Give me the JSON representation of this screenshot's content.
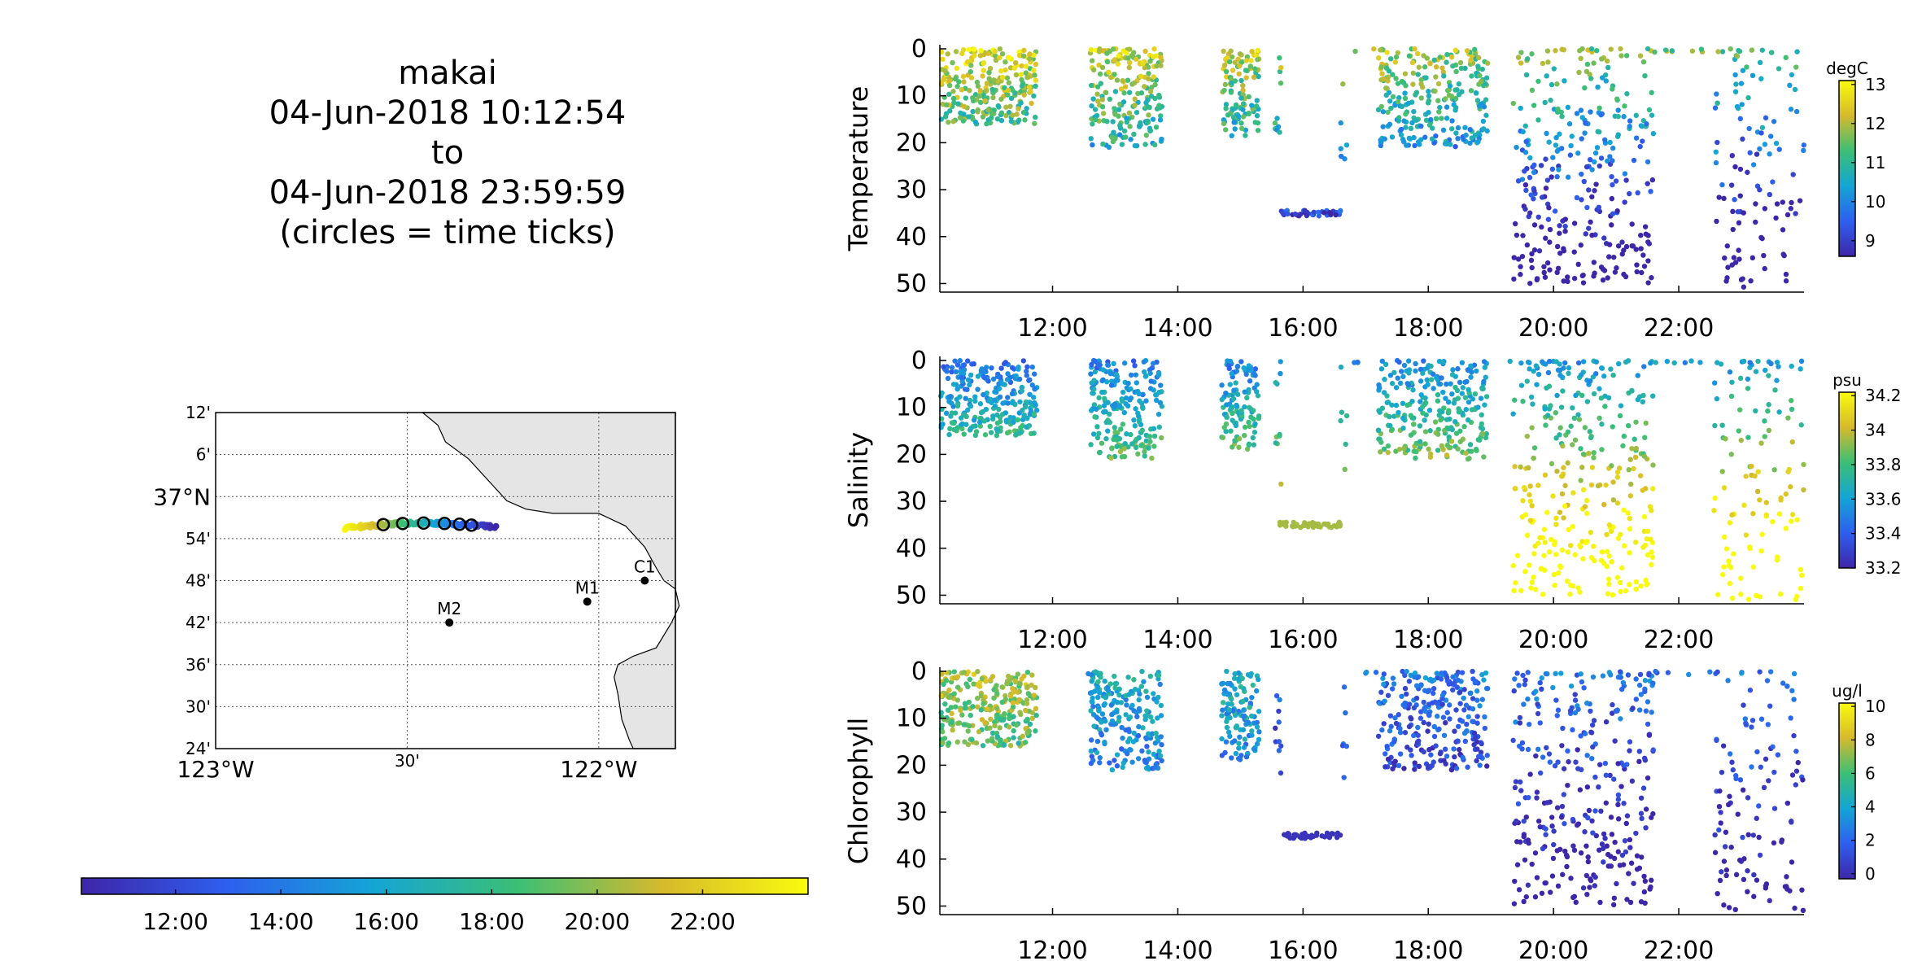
{
  "header": {
    "platform": "makai",
    "start_time": "04-Jun-2018 10:12:54",
    "connector": "to",
    "end_time": "04-Jun-2018 23:59:59",
    "note": "(circles = time ticks)"
  },
  "colors": {
    "parula_low": "#3e26a8",
    "parula_mid_blue": "#1e8fe2",
    "parula_teal": "#1bbaac",
    "parula_green": "#90c93d",
    "parula_high": "#f9fb0e",
    "land": "#e5e5e5",
    "station_marker": "#000000"
  },
  "chart_data": [
    {
      "type": "map",
      "title": "",
      "lon_range": [
        -123.0,
        -121.8
      ],
      "lat_range": [
        36.4,
        37.2
      ],
      "lat_tick_labels": [
        "12'",
        "6'",
        "37°N",
        "54'",
        "48'",
        "42'",
        "36'",
        "30'",
        "24'"
      ],
      "lat_tick_values": [
        37.2,
        37.1,
        37.0,
        36.9,
        36.8,
        36.7,
        36.6,
        36.5,
        36.4
      ],
      "lon_tick_labels": [
        "123°W",
        "30'",
        "122°W"
      ],
      "lon_tick_values": [
        -123.0,
        -122.5,
        -122.0
      ],
      "grid": true,
      "stations": [
        {
          "name": "M2",
          "lon": -122.39,
          "lat": 36.7
        },
        {
          "name": "M1",
          "lon": -122.03,
          "lat": 36.75
        },
        {
          "name": "C1",
          "lon": -121.88,
          "lat": 36.8
        }
      ],
      "track_note": "vehicle track colored by time; circles mark time ticks"
    },
    {
      "type": "colorbar",
      "orientation": "horizontal",
      "tick_labels": [
        "12:00",
        "14:00",
        "16:00",
        "18:00",
        "20:00",
        "22:00"
      ],
      "range_hours": [
        10.215,
        24.0
      ]
    },
    {
      "type": "scatter",
      "ylabel": "Temperature",
      "x_range_hours": [
        10.2,
        24.0
      ],
      "y_range": [
        0,
        52
      ],
      "y_reversed": true,
      "xtick_labels": [
        "12:00",
        "14:00",
        "16:00",
        "18:00",
        "20:00",
        "22:00"
      ],
      "ytick_labels": [
        "0",
        "10",
        "20",
        "30",
        "40",
        "50"
      ],
      "colorbar": {
        "unit": "degC",
        "range": [
          8.6,
          13.1
        ],
        "tick_labels": [
          "13",
          "12",
          "11",
          "10",
          "9"
        ]
      },
      "color_by": "value"
    },
    {
      "type": "scatter",
      "ylabel": "Salinity",
      "x_range_hours": [
        10.2,
        24.0
      ],
      "y_range": [
        0,
        52
      ],
      "y_reversed": true,
      "xtick_labels": [
        "12:00",
        "14:00",
        "16:00",
        "18:00",
        "20:00",
        "22:00"
      ],
      "ytick_labels": [
        "0",
        "10",
        "20",
        "30",
        "40",
        "50"
      ],
      "colorbar": {
        "unit": "psu",
        "range": [
          33.2,
          34.22
        ],
        "tick_labels": [
          "34.2",
          "34",
          "33.8",
          "33.6",
          "33.4",
          "33.2"
        ]
      },
      "color_by": "value"
    },
    {
      "type": "scatter",
      "ylabel": "Chlorophyll",
      "x_range_hours": [
        10.2,
        24.0
      ],
      "y_range": [
        0,
        52
      ],
      "y_reversed": true,
      "xtick_labels": [
        "12:00",
        "14:00",
        "16:00",
        "18:00",
        "20:00",
        "22:00"
      ],
      "ytick_labels": [
        "0",
        "10",
        "20",
        "30",
        "40",
        "50"
      ],
      "colorbar": {
        "unit": "ug/l",
        "range": [
          -0.3,
          10.2
        ],
        "tick_labels": [
          "10",
          "8",
          "6",
          "4",
          "2",
          "0"
        ]
      },
      "color_by": "value"
    }
  ],
  "sampling": {
    "profile_segments": [
      {
        "t0": 10.215,
        "t1": 11.75,
        "max_depth": 16,
        "points": 260
      },
      {
        "t0": 12.55,
        "t1": 12.9,
        "max_depth": 1,
        "points": 8
      },
      {
        "t0": 12.6,
        "t1": 13.75,
        "max_depth": 21,
        "points": 200
      },
      {
        "t0": 14.7,
        "t1": 15.3,
        "max_depth": 19,
        "points": 110
      },
      {
        "t0": 15.55,
        "t1": 15.65,
        "max_depth": 27,
        "points": 10
      },
      {
        "t0": 16.6,
        "t1": 16.7,
        "max_depth": 26,
        "points": 6
      },
      {
        "t0": 17.2,
        "t1": 18.95,
        "max_depth": 21,
        "points": 260
      },
      {
        "t0": 19.35,
        "t1": 21.6,
        "max_depth": 50,
        "points": 300
      },
      {
        "t0": 22.55,
        "t1": 24.0,
        "max_depth": 51,
        "points": 110
      }
    ],
    "deep_hold": {
      "t0": 15.6,
      "t1": 16.6,
      "depth": 35,
      "points": 40
    },
    "surface_intervals": [
      [
        16.7,
        17.3
      ],
      [
        19.3,
        22.6
      ],
      [
        22.6,
        23.5
      ]
    ]
  }
}
